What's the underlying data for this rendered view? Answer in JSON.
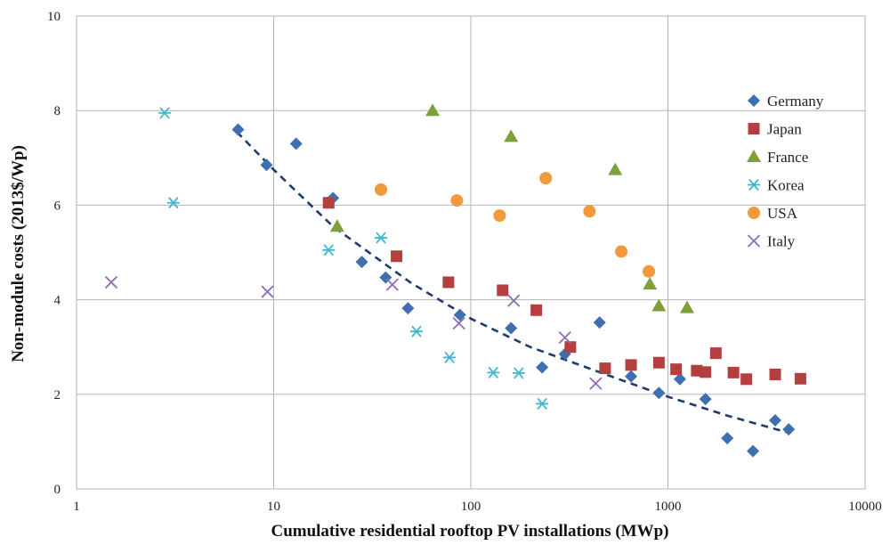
{
  "chart_data": {
    "type": "scatter",
    "title": "",
    "xlabel": "Cumulative residential rooftop PV installations (MWp)",
    "ylabel": "Non-module costs (2013$/Wp)",
    "x_scale": "log",
    "xlim": [
      1,
      10000
    ],
    "ylim": [
      0,
      10
    ],
    "x_ticks": [
      "1",
      "10",
      "100",
      "1000",
      "10000"
    ],
    "y_ticks": [
      "0",
      "2",
      "4",
      "6",
      "8",
      "10"
    ],
    "grid": true,
    "legend_position": "right",
    "series": [
      {
        "name": "Germany",
        "marker": "diamond",
        "color": "#3f6fb0",
        "points": [
          [
            6.6,
            7.6
          ],
          [
            9.2,
            6.85
          ],
          [
            13,
            7.3
          ],
          [
            20,
            6.15
          ],
          [
            28,
            4.8
          ],
          [
            37,
            4.47
          ],
          [
            48,
            3.82
          ],
          [
            88,
            3.68
          ],
          [
            160,
            3.4
          ],
          [
            230,
            2.57
          ],
          [
            300,
            2.85
          ],
          [
            450,
            3.52
          ],
          [
            650,
            2.38
          ],
          [
            900,
            2.03
          ],
          [
            1150,
            2.32
          ],
          [
            1550,
            1.9
          ],
          [
            2000,
            1.07
          ],
          [
            2700,
            0.8
          ],
          [
            3500,
            1.45
          ],
          [
            4100,
            1.26
          ]
        ]
      },
      {
        "name": "Japan",
        "marker": "square",
        "color": "#b3403f",
        "points": [
          [
            19,
            6.05
          ],
          [
            42,
            4.92
          ],
          [
            77,
            4.37
          ],
          [
            145,
            4.2
          ],
          [
            215,
            3.78
          ],
          [
            320,
            3.0
          ],
          [
            480,
            2.55
          ],
          [
            650,
            2.62
          ],
          [
            900,
            2.67
          ],
          [
            1100,
            2.53
          ],
          [
            1400,
            2.5
          ],
          [
            1550,
            2.47
          ],
          [
            1750,
            2.87
          ],
          [
            2150,
            2.46
          ],
          [
            2500,
            2.32
          ],
          [
            3500,
            2.42
          ],
          [
            4700,
            2.33
          ]
        ]
      },
      {
        "name": "France",
        "marker": "triangle",
        "color": "#7ea03a",
        "points": [
          [
            21,
            5.55
          ],
          [
            64,
            8.0
          ],
          [
            160,
            7.45
          ],
          [
            540,
            6.75
          ],
          [
            810,
            4.33
          ],
          [
            900,
            3.87
          ],
          [
            1250,
            3.83
          ]
        ]
      },
      {
        "name": "Korea",
        "marker": "asterisk",
        "color": "#43b6cf",
        "points": [
          [
            2.8,
            7.95
          ],
          [
            3.1,
            6.05
          ],
          [
            19,
            5.05
          ],
          [
            35,
            5.31
          ],
          [
            53,
            3.33
          ],
          [
            78,
            2.78
          ],
          [
            130,
            2.46
          ],
          [
            175,
            2.45
          ],
          [
            230,
            1.8
          ]
        ]
      },
      {
        "name": "USA",
        "marker": "circle",
        "color": "#f29a3b",
        "points": [
          [
            35,
            6.33
          ],
          [
            85,
            6.1
          ],
          [
            140,
            5.78
          ],
          [
            240,
            6.57
          ],
          [
            400,
            5.87
          ],
          [
            580,
            5.02
          ],
          [
            800,
            4.6
          ]
        ]
      },
      {
        "name": "Italy",
        "marker": "cross",
        "color": "#8e6db7",
        "points": [
          [
            1.5,
            4.37
          ],
          [
            9.3,
            4.17
          ],
          [
            40,
            4.32
          ],
          [
            87,
            3.5
          ],
          [
            165,
            3.98
          ],
          [
            300,
            3.2
          ],
          [
            430,
            2.23
          ]
        ]
      }
    ],
    "trendline": {
      "style": "dashed",
      "color": "#1f3a6e",
      "points": [
        [
          6.5,
          7.55
        ],
        [
          10,
          6.75
        ],
        [
          20,
          5.55
        ],
        [
          50,
          4.35
        ],
        [
          100,
          3.6
        ],
        [
          200,
          3.0
        ],
        [
          500,
          2.4
        ],
        [
          1000,
          1.95
        ],
        [
          2000,
          1.55
        ],
        [
          4000,
          1.2
        ]
      ]
    }
  }
}
